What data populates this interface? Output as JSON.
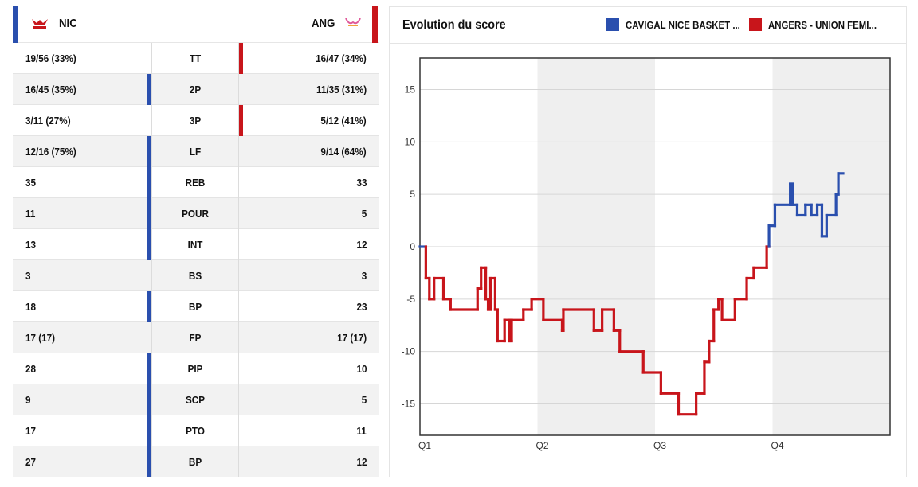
{
  "teams": {
    "home": {
      "abbr": "NIC",
      "logo": "nice-team-logo",
      "color": "#2a4fae"
    },
    "away": {
      "abbr": "ANG",
      "logo": "angers-team-logo",
      "color": "#c8151b"
    }
  },
  "stats": [
    {
      "label": "TT",
      "home": "19/56 (33%)",
      "away": "16/47 (34%)",
      "leader": "away"
    },
    {
      "label": "2P",
      "home": "16/45 (35%)",
      "away": "11/35 (31%)",
      "leader": "home"
    },
    {
      "label": "3P",
      "home": "3/11 (27%)",
      "away": "5/12 (41%)",
      "leader": "away"
    },
    {
      "label": "LF",
      "home": "12/16 (75%)",
      "away": "9/14 (64%)",
      "leader": "home"
    },
    {
      "label": "REB",
      "home": "35",
      "away": "33",
      "leader": "home"
    },
    {
      "label": "POUR",
      "home": "11",
      "away": "5",
      "leader": "home"
    },
    {
      "label": "INT",
      "home": "13",
      "away": "12",
      "leader": "home"
    },
    {
      "label": "BS",
      "home": "3",
      "away": "3",
      "leader": "none"
    },
    {
      "label": "BP",
      "home": "18",
      "away": "23",
      "leader": "home"
    },
    {
      "label": "FP",
      "home": "17 (17)",
      "away": "17 (17)",
      "leader": "none"
    },
    {
      "label": "PIP",
      "home": "28",
      "away": "10",
      "leader": "home"
    },
    {
      "label": "SCP",
      "home": "9",
      "away": "5",
      "leader": "home"
    },
    {
      "label": "PTO",
      "home": "17",
      "away": "11",
      "leader": "home"
    },
    {
      "label": "BP",
      "home": "27",
      "away": "12",
      "leader": "home"
    }
  ],
  "chart_panel": {
    "title": "Evolution du score",
    "legend": [
      {
        "label": "CAVIGAL NICE BASKET ...",
        "color": "#2a4fae"
      },
      {
        "label": "ANGERS - UNION FEMI...",
        "color": "#c8151b"
      }
    ]
  },
  "chart_data": {
    "type": "line",
    "title": "Evolution du score",
    "xlabel": "",
    "ylabel": "",
    "x_ticks": [
      "Q1",
      "Q2",
      "Q3",
      "Q4"
    ],
    "xlim": [
      0,
      40
    ],
    "ylim": [
      -18,
      18
    ],
    "y_ticks": [
      15,
      10,
      5,
      0,
      -5,
      -10,
      -15
    ],
    "grid": true,
    "shaded_quarters": [
      "Q2",
      "Q4"
    ],
    "positive_color": "#2a4fae",
    "negative_color": "#c8151b",
    "series": [
      {
        "name": "score difference",
        "points": [
          [
            0,
            0
          ],
          [
            0.5,
            0
          ],
          [
            0.5,
            -3
          ],
          [
            0.8,
            -3
          ],
          [
            0.8,
            -5
          ],
          [
            1.2,
            -5
          ],
          [
            1.2,
            -3
          ],
          [
            2,
            -3
          ],
          [
            2,
            -5
          ],
          [
            2.6,
            -5
          ],
          [
            2.6,
            -6
          ],
          [
            4.9,
            -6
          ],
          [
            4.9,
            -4
          ],
          [
            5.2,
            -4
          ],
          [
            5.2,
            -2
          ],
          [
            5.6,
            -2
          ],
          [
            5.6,
            -5
          ],
          [
            5.8,
            -5
          ],
          [
            5.8,
            -6
          ],
          [
            6,
            -6
          ],
          [
            6,
            -3
          ],
          [
            6.4,
            -3
          ],
          [
            6.4,
            -6
          ],
          [
            6.6,
            -6
          ],
          [
            6.6,
            -9
          ],
          [
            7.2,
            -9
          ],
          [
            7.2,
            -7
          ],
          [
            7.6,
            -7
          ],
          [
            7.6,
            -9
          ],
          [
            7.8,
            -9
          ],
          [
            7.8,
            -7
          ],
          [
            8.8,
            -7
          ],
          [
            8.8,
            -6
          ],
          [
            9.5,
            -6
          ],
          [
            9.5,
            -5
          ],
          [
            10.5,
            -5
          ],
          [
            10.5,
            -7
          ],
          [
            12.1,
            -7
          ],
          [
            12.1,
            -8
          ],
          [
            12.2,
            -8
          ],
          [
            12.2,
            -6
          ],
          [
            14.8,
            -6
          ],
          [
            14.8,
            -8
          ],
          [
            15.5,
            -8
          ],
          [
            15.5,
            -6
          ],
          [
            16.5,
            -6
          ],
          [
            16.5,
            -8
          ],
          [
            17,
            -8
          ],
          [
            17,
            -10
          ],
          [
            19,
            -10
          ],
          [
            19,
            -12
          ],
          [
            20.5,
            -12
          ],
          [
            20.5,
            -14
          ],
          [
            22,
            -14
          ],
          [
            22,
            -16
          ],
          [
            23.5,
            -16
          ],
          [
            23.5,
            -14
          ],
          [
            24.2,
            -14
          ],
          [
            24.2,
            -11
          ],
          [
            24.6,
            -11
          ],
          [
            24.6,
            -9
          ],
          [
            25,
            -9
          ],
          [
            25,
            -6
          ],
          [
            25.4,
            -6
          ],
          [
            25.4,
            -5
          ],
          [
            25.7,
            -5
          ],
          [
            25.7,
            -7
          ],
          [
            26.8,
            -7
          ],
          [
            26.8,
            -5
          ],
          [
            27.8,
            -5
          ],
          [
            27.8,
            -3
          ],
          [
            28.4,
            -3
          ],
          [
            28.4,
            -2
          ],
          [
            29.5,
            -2
          ],
          [
            29.5,
            0
          ],
          [
            29.7,
            0
          ],
          [
            29.7,
            2
          ],
          [
            30.2,
            2
          ],
          [
            30.2,
            4
          ],
          [
            31.5,
            4
          ],
          [
            31.5,
            6
          ],
          [
            31.7,
            6
          ],
          [
            31.7,
            4
          ],
          [
            32.1,
            4
          ],
          [
            32.1,
            3
          ],
          [
            32.8,
            3
          ],
          [
            32.8,
            4
          ],
          [
            33.3,
            4
          ],
          [
            33.3,
            3
          ],
          [
            33.8,
            3
          ],
          [
            33.8,
            4
          ],
          [
            34.2,
            4
          ],
          [
            34.2,
            1
          ],
          [
            34.6,
            1
          ],
          [
            34.6,
            3
          ],
          [
            35.4,
            3
          ],
          [
            35.4,
            5
          ],
          [
            35.6,
            5
          ],
          [
            35.6,
            7
          ],
          [
            36,
            7
          ]
        ]
      }
    ]
  }
}
